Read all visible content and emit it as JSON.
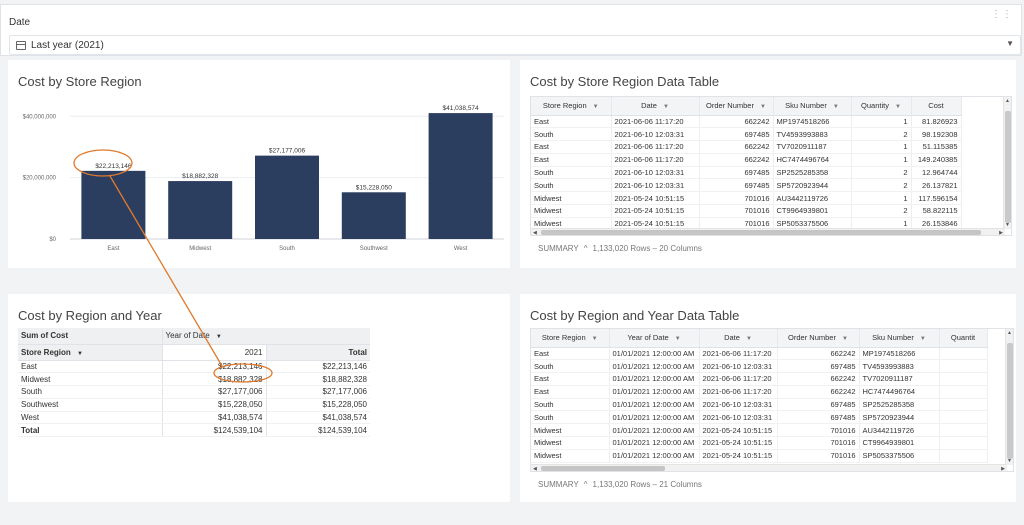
{
  "filter": {
    "label": "Date",
    "value": "Last year (2021)"
  },
  "panels": {
    "bar_chart_title": "Cost by Store Region",
    "table1_title": "Cost by Store Region Data Table",
    "pivot_title": "Cost by Region and Year",
    "table2_title": "Cost by Region and Year Data Table"
  },
  "chart_data": {
    "type": "bar",
    "categories": [
      "East",
      "Midwest",
      "South",
      "Southwest",
      "West"
    ],
    "values": [
      22213146,
      18882328,
      27177006,
      15228050,
      41038574
    ],
    "data_labels": [
      "$22,213,146",
      "$18,882,328",
      "$27,177,006",
      "$15,228,050",
      "$41,038,574"
    ],
    "title": "Cost by Store Region",
    "ylim": [
      0,
      44000000
    ],
    "yticks": [
      0,
      20000000,
      40000000
    ],
    "ytick_labels": [
      "$0",
      "$20,000,000",
      "$40,000,000"
    ],
    "bar_color": "#2c3e60",
    "grid": true
  },
  "table1": {
    "columns": [
      "Store Region",
      "Date",
      "Order Number",
      "Sku Number",
      "Quantity",
      "Cost"
    ],
    "rows": [
      [
        "East",
        "2021-06-06 11:17:20",
        "662242",
        "MP1974518266",
        "1",
        "81.826923"
      ],
      [
        "South",
        "2021-06-10 12:03:31",
        "697485",
        "TV4593993883",
        "2",
        "98.192308"
      ],
      [
        "East",
        "2021-06-06 11:17:20",
        "662242",
        "TV7020911187",
        "1",
        "51.115385"
      ],
      [
        "East",
        "2021-06-06 11:17:20",
        "662242",
        "HC7474496764",
        "1",
        "149.240385"
      ],
      [
        "South",
        "2021-06-10 12:03:31",
        "697485",
        "SP2525285358",
        "2",
        "12.964744"
      ],
      [
        "South",
        "2021-06-10 12:03:31",
        "697485",
        "SP5720923944",
        "2",
        "26.137821"
      ],
      [
        "Midwest",
        "2021-05-24 10:51:15",
        "701016",
        "AU3442119726",
        "1",
        "117.596154"
      ],
      [
        "Midwest",
        "2021-05-24 10:51:15",
        "701016",
        "CT9964939801",
        "2",
        "58.822115"
      ],
      [
        "Midwest",
        "2021-05-24 10:51:15",
        "701016",
        "SP5053375506",
        "1",
        "26.153846"
      ]
    ],
    "summary_label": "SUMMARY",
    "summary_text": "1,133,020 Rows – 20 Columns"
  },
  "table2": {
    "columns": [
      "Store Region",
      "Year of Date",
      "Date",
      "Order Number",
      "Sku Number",
      "Quantit"
    ],
    "rows": [
      [
        "East",
        "01/01/2021 12:00:00 AM",
        "2021-06-06 11:17:20",
        "662242",
        "MP1974518266",
        ""
      ],
      [
        "South",
        "01/01/2021 12:00:00 AM",
        "2021-06-10 12:03:31",
        "697485",
        "TV4593993883",
        ""
      ],
      [
        "East",
        "01/01/2021 12:00:00 AM",
        "2021-06-06 11:17:20",
        "662242",
        "TV7020911187",
        ""
      ],
      [
        "East",
        "01/01/2021 12:00:00 AM",
        "2021-06-06 11:17:20",
        "662242",
        "HC7474496764",
        ""
      ],
      [
        "South",
        "01/01/2021 12:00:00 AM",
        "2021-06-10 12:03:31",
        "697485",
        "SP2525285358",
        ""
      ],
      [
        "South",
        "01/01/2021 12:00:00 AM",
        "2021-06-10 12:03:31",
        "697485",
        "SP5720923944",
        ""
      ],
      [
        "Midwest",
        "01/01/2021 12:00:00 AM",
        "2021-05-24 10:51:15",
        "701016",
        "AU3442119726",
        ""
      ],
      [
        "Midwest",
        "01/01/2021 12:00:00 AM",
        "2021-05-24 10:51:15",
        "701016",
        "CT9964939801",
        ""
      ],
      [
        "Midwest",
        "01/01/2021 12:00:00 AM",
        "2021-05-24 10:51:15",
        "701016",
        "SP5053375506",
        ""
      ]
    ],
    "summary_label": "SUMMARY",
    "summary_text": "1,133,020 Rows – 21 Columns"
  },
  "pivot": {
    "measure_label": "Sum of Cost",
    "column_field": "Year of Date",
    "row_field": "Store Region",
    "year_header": "2021",
    "total_header": "Total",
    "rows": [
      [
        "East",
        "$22,213,146",
        "$22,213,146"
      ],
      [
        "Midwest",
        "$18,882,328",
        "$18,882,328"
      ],
      [
        "South",
        "$27,177,006",
        "$27,177,006"
      ],
      [
        "Southwest",
        "$15,228,050",
        "$15,228,050"
      ],
      [
        "West",
        "$41,038,574",
        "$41,038,574"
      ]
    ],
    "total_row": [
      "Total",
      "$124,539,104",
      "$124,539,104"
    ]
  },
  "colors": {
    "bar": "#2c3e60",
    "annotation": "#e07a2c"
  }
}
